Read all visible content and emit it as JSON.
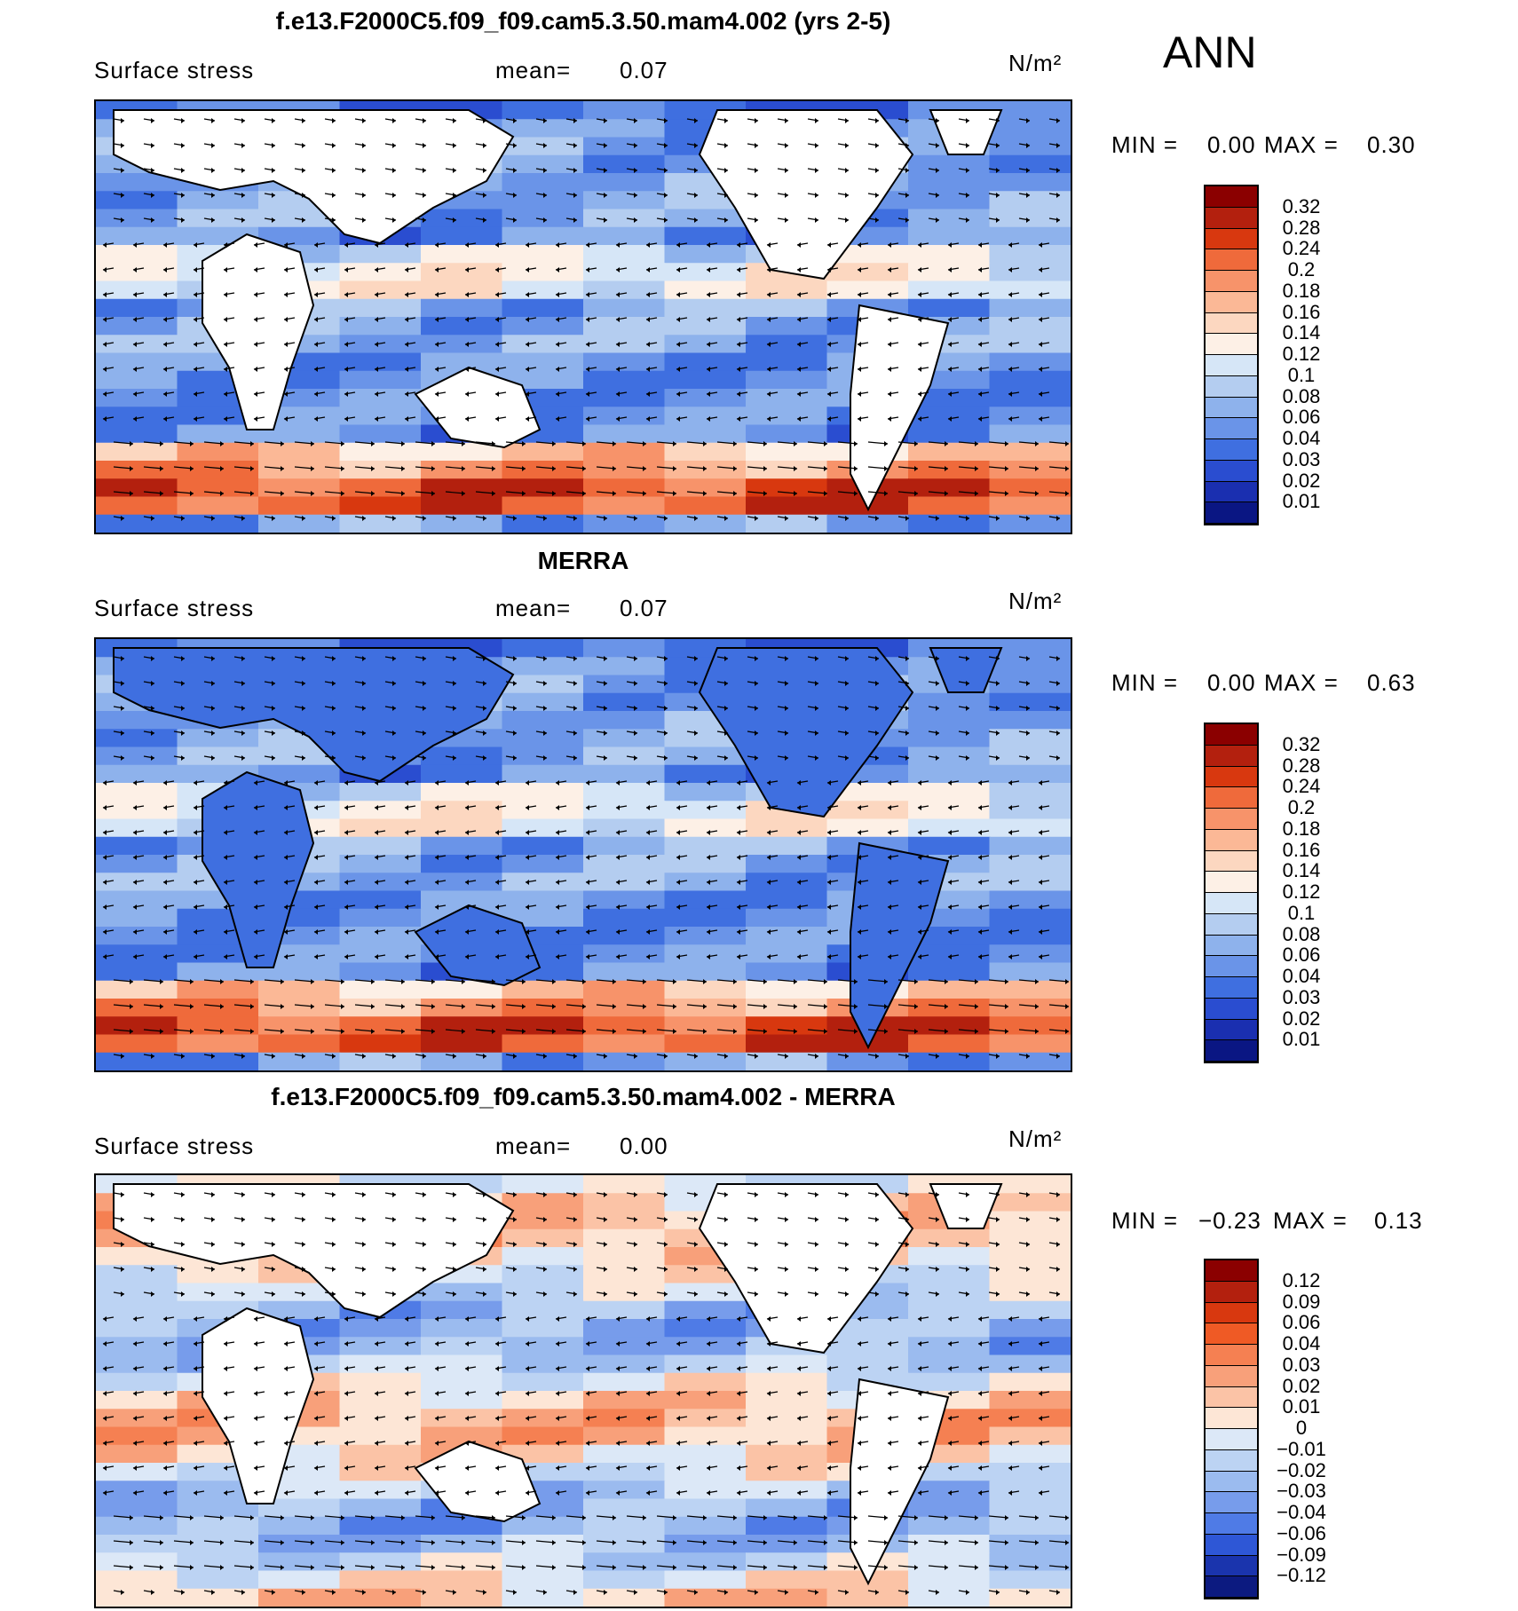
{
  "season": "ANN",
  "units_label": "N/m²",
  "panels": [
    {
      "title": "f.e13.F2000C5.f09_f09.cam5.3.50.mam4.002 (yrs 2-5)",
      "variable": "Surface stress",
      "mean_label": "mean=",
      "mean_value": "0.07",
      "min_label": "MIN =",
      "min_value": "0.00",
      "max_label": "MAX =",
      "max_value": "0.30",
      "colorbar_ticks": [
        "0.32",
        "0.28",
        "0.24",
        "0.2",
        "0.18",
        "0.16",
        "0.14",
        "0.12",
        "0.1",
        "0.08",
        "0.06",
        "0.04",
        "0.03",
        "0.02",
        "0.01"
      ],
      "colorbar_colors": [
        "#8b0000",
        "#b3200e",
        "#d8380f",
        "#ef6a3b",
        "#f7936a",
        "#fbb896",
        "#fcd7c0",
        "#fdf0e6",
        "#d6e6f7",
        "#b4cdf0",
        "#8eb2ec",
        "#6a94e8",
        "#3f6fe0",
        "#2a4dd0",
        "#1a2fb0",
        "#0a1683"
      ]
    },
    {
      "title": "MERRA",
      "variable": "Surface stress",
      "mean_label": "mean=",
      "mean_value": "0.07",
      "min_label": "MIN =",
      "min_value": "0.00",
      "max_label": "MAX =",
      "max_value": "0.63",
      "colorbar_ticks": [
        "0.32",
        "0.28",
        "0.24",
        "0.2",
        "0.18",
        "0.16",
        "0.14",
        "0.12",
        "0.1",
        "0.08",
        "0.06",
        "0.04",
        "0.03",
        "0.02",
        "0.01"
      ],
      "colorbar_colors": [
        "#8b0000",
        "#b3200e",
        "#d8380f",
        "#ef6a3b",
        "#f7936a",
        "#fbb896",
        "#fcd7c0",
        "#fdf0e6",
        "#d6e6f7",
        "#b4cdf0",
        "#8eb2ec",
        "#6a94e8",
        "#3f6fe0",
        "#2a4dd0",
        "#1a2fb0",
        "#0a1683"
      ]
    },
    {
      "title": "f.e13.F2000C5.f09_f09.cam5.3.50.mam4.002 - MERRA",
      "variable": "Surface stress",
      "mean_label": "mean=",
      "mean_value": "0.00",
      "min_label": "MIN =",
      "min_value": "−0.23",
      "max_label": "MAX =",
      "max_value": "0.13",
      "colorbar_ticks": [
        "0.12",
        "0.09",
        "0.06",
        "0.04",
        "0.03",
        "0.02",
        "0.01",
        "0",
        "−0.01",
        "−0.02",
        "−0.03",
        "−0.04",
        "−0.06",
        "−0.09",
        "−0.12"
      ],
      "colorbar_colors": [
        "#8b0000",
        "#b3200e",
        "#d8380f",
        "#ef5a25",
        "#f58052",
        "#f8a07a",
        "#fbc3a6",
        "#fde6d6",
        "#dce8f7",
        "#bcd3f3",
        "#9bbbef",
        "#779ceb",
        "#4f7be6",
        "#2e57d6",
        "#1a34ad",
        "#0c1a80"
      ]
    }
  ]
}
